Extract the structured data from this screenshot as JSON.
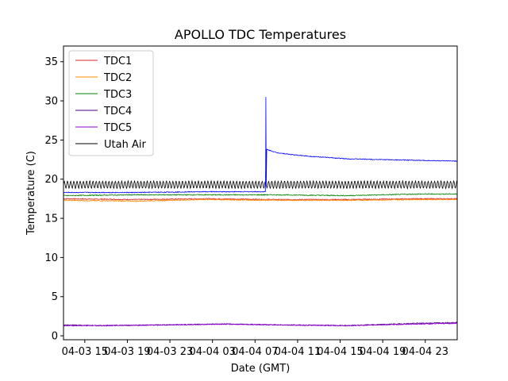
{
  "chart_data": {
    "type": "line",
    "title": "APOLLO TDC Temperatures",
    "xlabel": "Date (GMT)",
    "ylabel": "Temperature (C)",
    "ylim": [
      -0.5,
      37
    ],
    "yticks": [
      0,
      5,
      10,
      15,
      20,
      25,
      30,
      35
    ],
    "xlim_hours": [
      0,
      111
    ],
    "xticks": [
      {
        "label": "04-03 15",
        "hour": 6
      },
      {
        "label": "04-03 19",
        "hour": 18
      },
      {
        "label": "04-03 23",
        "hour": 30
      },
      {
        "label": "04-04 03",
        "hour": 42
      },
      {
        "label": "04-04 07",
        "hour": 54
      },
      {
        "label": "04-04 11",
        "hour": 66
      },
      {
        "label": "04-04 15",
        "hour": 78
      },
      {
        "label": "04-04 19",
        "hour": 90
      },
      {
        "label": "04-04 23",
        "hour": 102
      }
    ],
    "legend_position": "top-left",
    "series": [
      {
        "name": "TDC1",
        "color": "#d62728",
        "points": [
          [
            0,
            17.5
          ],
          [
            20,
            17.4
          ],
          [
            40,
            17.5
          ],
          [
            60,
            17.4
          ],
          [
            80,
            17.4
          ],
          [
            100,
            17.5
          ],
          [
            111,
            17.5
          ]
        ]
      },
      {
        "name": "TDC2",
        "color": "#ff8c00",
        "points": [
          [
            0,
            17.3
          ],
          [
            20,
            17.2
          ],
          [
            40,
            17.4
          ],
          [
            60,
            17.3
          ],
          [
            80,
            17.3
          ],
          [
            100,
            17.4
          ],
          [
            111,
            17.4
          ]
        ]
      },
      {
        "name": "TDC3",
        "color": "#008000",
        "points": [
          [
            0,
            17.9
          ],
          [
            20,
            18.0
          ],
          [
            40,
            18.0
          ],
          [
            60,
            18.0
          ],
          [
            80,
            17.9
          ],
          [
            100,
            18.1
          ],
          [
            111,
            18.1
          ]
        ]
      },
      {
        "name": "TDC4",
        "color": "#4b0082",
        "points": [
          [
            0,
            1.4
          ],
          [
            10,
            1.3
          ],
          [
            30,
            1.4
          ],
          [
            45,
            1.5
          ],
          [
            60,
            1.4
          ],
          [
            80,
            1.3
          ],
          [
            100,
            1.6
          ],
          [
            111,
            1.7
          ]
        ]
      },
      {
        "name": "TDC5",
        "color": "#9400d3",
        "points": [
          [
            0,
            1.3
          ],
          [
            10,
            1.3
          ],
          [
            30,
            1.4
          ],
          [
            45,
            1.5
          ],
          [
            60,
            1.4
          ],
          [
            80,
            1.3
          ],
          [
            100,
            1.5
          ],
          [
            111,
            1.6
          ]
        ]
      },
      {
        "name": "Utah Air",
        "color": "#000000",
        "points": [
          [
            0,
            19.3
          ],
          [
            111,
            19.3
          ]
        ],
        "oscillation": {
          "center": 19.3,
          "amplitude": 0.45,
          "period_hours": 0.9
        }
      }
    ],
    "unlabeled_trace": {
      "color": "#0000ff",
      "points": [
        [
          0,
          18.3
        ],
        [
          20,
          18.3
        ],
        [
          40,
          18.4
        ],
        [
          56.9,
          18.4
        ],
        [
          57.0,
          21.5
        ],
        [
          57.05,
          30.5
        ],
        [
          57.15,
          19.2
        ],
        [
          57.3,
          23.8
        ],
        [
          60,
          23.4
        ],
        [
          65,
          23.1
        ],
        [
          70,
          22.9
        ],
        [
          80,
          22.6
        ],
        [
          90,
          22.5
        ],
        [
          100,
          22.4
        ],
        [
          111,
          22.3
        ]
      ]
    }
  }
}
